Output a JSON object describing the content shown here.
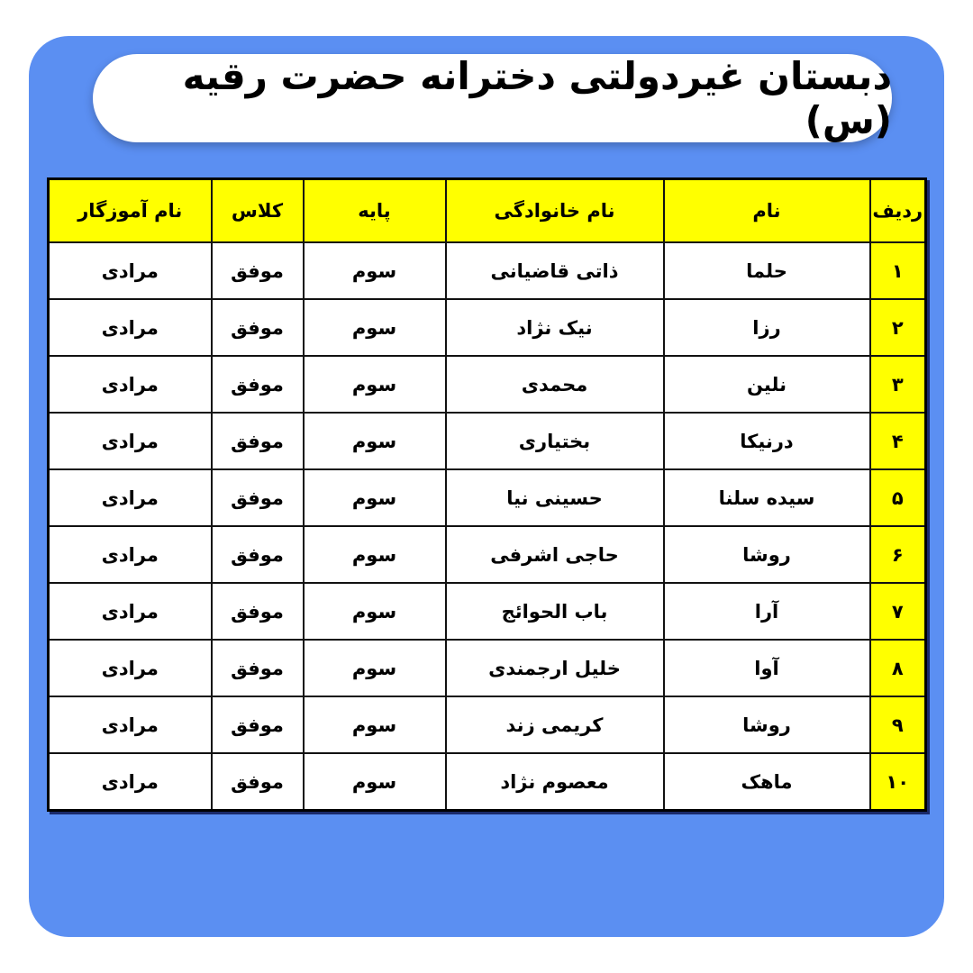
{
  "title": "دبستان غیردولتی دخترانه حضرت رقیه (س)",
  "colors": {
    "background_panel": "#5b8ff2",
    "header_fill": "#ffff00",
    "index_fill": "#ffff00"
  },
  "table": {
    "headers": [
      "ردیف",
      "نام",
      "نام خانوادگی",
      "پایه",
      "کلاس",
      "نام آموزگار"
    ],
    "rows": [
      [
        "۱",
        "حلما",
        "ذاتی قاضیانی",
        "سوم",
        "موفق",
        "مرادی"
      ],
      [
        "۲",
        "رزا",
        "نیک نژاد",
        "سوم",
        "موفق",
        "مرادی"
      ],
      [
        "۳",
        "نلین",
        "محمدی",
        "سوم",
        "موفق",
        "مرادی"
      ],
      [
        "۴",
        "درنیکا",
        "بختیاری",
        "سوم",
        "موفق",
        "مرادی"
      ],
      [
        "۵",
        "سیده سلنا",
        "حسینی نیا",
        "سوم",
        "موفق",
        "مرادی"
      ],
      [
        "۶",
        "روشا",
        "حاجی اشرفی",
        "سوم",
        "موفق",
        "مرادی"
      ],
      [
        "۷",
        "آرا",
        "باب الحوائج",
        "سوم",
        "موفق",
        "مرادی"
      ],
      [
        "۸",
        "آوا",
        "خلیل ارجمندی",
        "سوم",
        "موفق",
        "مرادی"
      ],
      [
        "۹",
        "روشا",
        "کریمی زند",
        "سوم",
        "موفق",
        "مرادی"
      ],
      [
        "۱۰",
        "ماهک",
        "معصوم نژاد",
        "سوم",
        "موفق",
        "مرادی"
      ]
    ]
  }
}
